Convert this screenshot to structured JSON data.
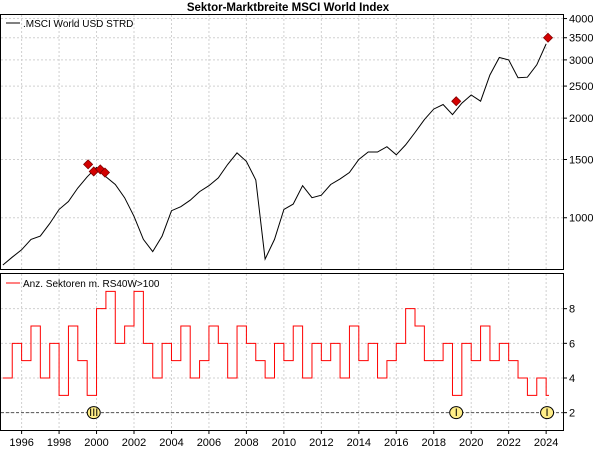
{
  "chart_data": [
    {
      "type": "line",
      "title": "Sektor-Marktbreite MSCI World Index",
      "legend": ".MSCI World USD STRD",
      "legend_position": "top-left",
      "scale": "log",
      "ylim": [
        700,
        4100
      ],
      "yticks": [
        1000,
        1500,
        2000,
        2500,
        3000,
        3500,
        4000
      ],
      "ytick_labels": [
        "1000",
        "1500",
        "2000",
        "2500",
        "3000",
        "3500",
        "4000"
      ],
      "grid": true,
      "line_color": "#000000",
      "marker_color": "#d40000",
      "x": [
        1995.0,
        1995.5,
        1996.0,
        1996.5,
        1997.0,
        1997.5,
        1998.0,
        1998.5,
        1999.0,
        1999.5,
        2000.0,
        2000.5,
        2001.0,
        2001.5,
        2002.0,
        2002.5,
        2003.0,
        2003.5,
        2004.0,
        2004.5,
        2005.0,
        2005.5,
        2006.0,
        2006.5,
        2007.0,
        2007.5,
        2008.0,
        2008.5,
        2009.0,
        2009.5,
        2010.0,
        2010.5,
        2011.0,
        2011.5,
        2012.0,
        2012.5,
        2013.0,
        2013.5,
        2014.0,
        2014.5,
        2015.0,
        2015.5,
        2016.0,
        2016.5,
        2017.0,
        2017.5,
        2018.0,
        2018.5,
        2019.0,
        2019.5,
        2020.0,
        2020.5,
        2021.0,
        2021.5,
        2022.0,
        2022.5,
        2023.0,
        2023.5,
        2024.0
      ],
      "values": [
        720,
        760,
        800,
        860,
        880,
        960,
        1060,
        1120,
        1230,
        1330,
        1420,
        1330,
        1260,
        1150,
        1010,
        860,
        790,
        880,
        1050,
        1080,
        1130,
        1200,
        1250,
        1320,
        1450,
        1570,
        1480,
        1300,
        750,
        860,
        1060,
        1100,
        1250,
        1150,
        1170,
        1260,
        1310,
        1370,
        1500,
        1580,
        1580,
        1640,
        1550,
        1660,
        1810,
        1980,
        2130,
        2200,
        2050,
        2220,
        2350,
        2250,
        2700,
        3050,
        3000,
        2650,
        2660,
        2900,
        3350
      ],
      "markers": [
        {
          "x": 1999.55,
          "y": 1450
        },
        {
          "x": 1999.85,
          "y": 1380
        },
        {
          "x": 2000.2,
          "y": 1400
        },
        {
          "x": 2000.45,
          "y": 1370
        },
        {
          "x": 2019.2,
          "y": 2250
        },
        {
          "x": 2024.1,
          "y": 3500
        }
      ]
    },
    {
      "type": "line",
      "legend": "Anz. Sektoren m. RS40W>100",
      "legend_position": "top-left",
      "ylim": [
        1,
        10
      ],
      "yticks": [
        2,
        4,
        6,
        8
      ],
      "ytick_labels": [
        "2",
        "4",
        "6",
        "8"
      ],
      "reference_line": 2,
      "grid": true,
      "line_color": "#ff0000",
      "x": [
        1995.0,
        1995.5,
        1996.0,
        1996.5,
        1997.0,
        1997.5,
        1998.0,
        1998.5,
        1999.0,
        1999.5,
        2000.0,
        2000.5,
        2001.0,
        2001.5,
        2002.0,
        2002.5,
        2003.0,
        2003.5,
        2004.0,
        2004.5,
        2005.0,
        2005.5,
        2006.0,
        2006.5,
        2007.0,
        2007.5,
        2008.0,
        2008.5,
        2009.0,
        2009.5,
        2010.0,
        2010.5,
        2011.0,
        2011.5,
        2012.0,
        2012.5,
        2013.0,
        2013.5,
        2014.0,
        2014.5,
        2015.0,
        2015.5,
        2016.0,
        2016.5,
        2017.0,
        2017.5,
        2018.0,
        2018.5,
        2019.0,
        2019.5,
        2020.0,
        2020.5,
        2021.0,
        2021.5,
        2022.0,
        2022.5,
        2023.0,
        2023.5,
        2024.0
      ],
      "values": [
        4,
        6,
        5,
        7,
        4,
        6,
        3,
        7,
        5,
        3,
        8,
        9,
        6,
        7,
        9,
        6,
        4,
        6,
        5,
        7,
        4,
        5,
        7,
        6,
        4,
        7,
        6,
        5,
        4,
        6,
        5,
        7,
        4,
        6,
        5,
        6,
        4,
        7,
        5,
        6,
        4,
        5,
        6,
        8,
        7,
        5,
        5,
        6,
        3,
        6,
        5,
        7,
        5,
        6,
        5,
        4,
        3,
        4,
        3
      ],
      "circle_markers": [
        {
          "x": 1999.85,
          "y": 2,
          "label": "III"
        },
        {
          "x": 2019.2,
          "y": 2,
          "label": "I"
        },
        {
          "x": 2024.05,
          "y": 2,
          "label": "I"
        }
      ]
    }
  ],
  "x_axis": {
    "xlim": [
      1994.9,
      2024.9
    ],
    "xticks": [
      1996,
      1998,
      2000,
      2002,
      2004,
      2006,
      2008,
      2010,
      2012,
      2014,
      2016,
      2018,
      2020,
      2022,
      2024
    ],
    "xtick_labels": [
      "1996",
      "1998",
      "2000",
      "2002",
      "2004",
      "2006",
      "2008",
      "2010",
      "2012",
      "2014",
      "2016",
      "2018",
      "2020",
      "2022",
      "2024"
    ]
  }
}
